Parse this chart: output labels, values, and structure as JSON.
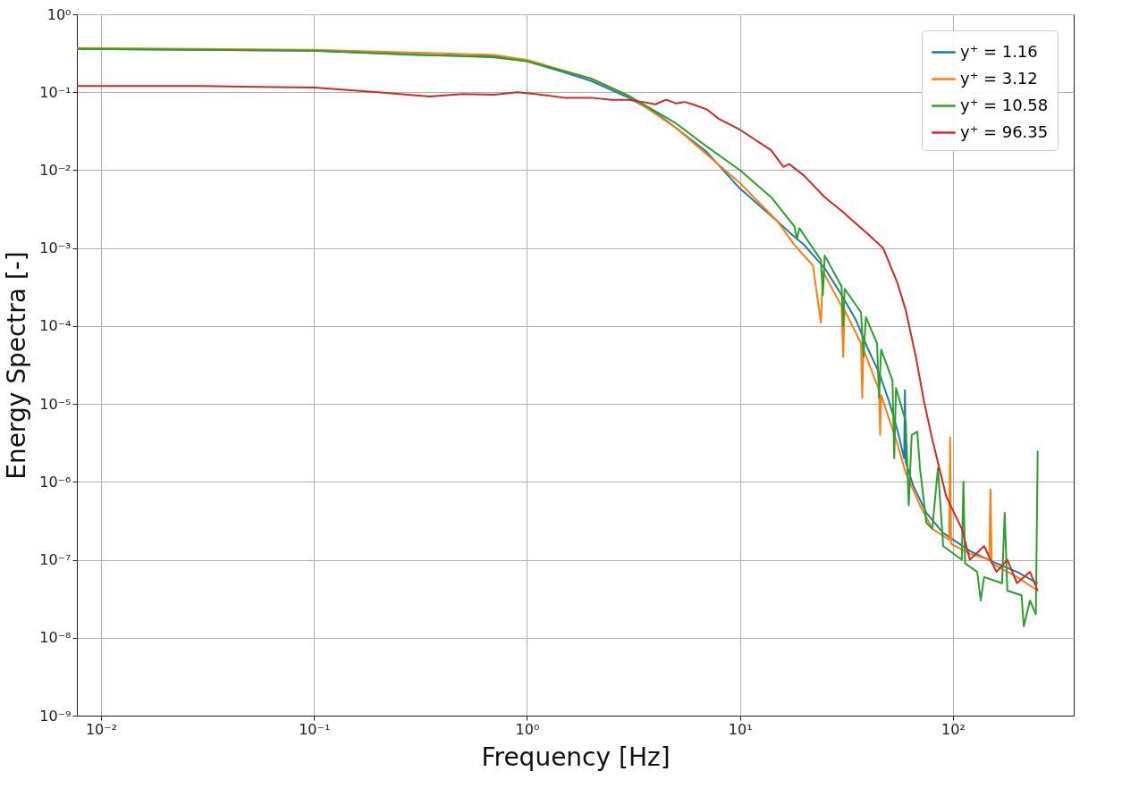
{
  "chart_data": {
    "type": "line",
    "xlabel": "Frequency [Hz]",
    "ylabel": "Energy Spectra [-]",
    "log": "xy",
    "grid": true,
    "legend": "top right",
    "xlim": [
      0.0077,
      369
    ],
    "ylim": [
      1e-09,
      1
    ],
    "xticks": [
      {
        "value": 0.01,
        "label": "10⁻²"
      },
      {
        "value": 0.1,
        "label": "10⁻¹"
      },
      {
        "value": 1,
        "label": "10⁰"
      },
      {
        "value": 10,
        "label": "10¹"
      },
      {
        "value": 100,
        "label": "10²"
      }
    ],
    "yticks": [
      {
        "value": 1e-09,
        "label": "10⁻⁹"
      },
      {
        "value": 1e-08,
        "label": "10⁻⁸"
      },
      {
        "value": 1e-07,
        "label": "10⁻⁷"
      },
      {
        "value": 1e-06,
        "label": "10⁻⁶"
      },
      {
        "value": 1e-05,
        "label": "10⁻⁵"
      },
      {
        "value": 0.0001,
        "label": "10⁻⁴"
      },
      {
        "value": 0.001,
        "label": "10⁻³"
      },
      {
        "value": 0.01,
        "label": "10⁻²"
      },
      {
        "value": 0.1,
        "label": "10⁻¹"
      },
      {
        "value": 1,
        "label": "10⁰"
      }
    ],
    "series": [
      {
        "name": "y⁺ = 1.16",
        "color": "#1f77b4",
        "x": [
          0.0077,
          0.03,
          0.1,
          0.3,
          0.7,
          1,
          1.5,
          2,
          3,
          4,
          5,
          7,
          10,
          14,
          18,
          20,
          25,
          30,
          35,
          40,
          45,
          50,
          55,
          59,
          59.5,
          60,
          65,
          75,
          90,
          120,
          160,
          200,
          250
        ],
        "values": [
          0.36,
          0.35,
          0.34,
          0.3,
          0.29,
          0.25,
          0.18,
          0.14,
          0.085,
          0.055,
          0.035,
          0.017,
          0.0058,
          0.0026,
          0.0014,
          0.0011,
          0.00055,
          0.00025,
          0.00012,
          5e-05,
          2.5e-05,
          1.1e-05,
          4.5e-06,
          2e-06,
          1.5e-05,
          1.8e-06,
          9e-07,
          4e-07,
          2.2e-07,
          1.3e-07,
          9e-08,
          7e-08,
          5e-08
        ]
      },
      {
        "name": "y⁺ = 3.12",
        "color": "#ff7f0e",
        "x": [
          0.0077,
          0.1,
          0.7,
          1,
          2,
          3,
          5,
          10,
          15,
          18,
          22,
          24,
          24.5,
          30,
          30.5,
          31,
          37,
          37.5,
          38,
          45,
          45.5,
          46,
          55,
          60,
          70,
          80,
          96,
          97,
          98,
          120,
          148,
          150,
          152,
          200,
          250
        ],
        "values": [
          0.37,
          0.35,
          0.3,
          0.26,
          0.15,
          0.09,
          0.035,
          0.0068,
          0.0022,
          0.0011,
          0.0006,
          0.00011,
          0.0005,
          0.00018,
          4e-05,
          0.00016,
          6e-05,
          1.2e-05,
          5e-05,
          1.5e-05,
          4e-06,
          1.3e-05,
          3e-06,
          1.3e-06,
          5e-07,
          2.5e-07,
          1.8e-07,
          3.7e-06,
          1.6e-07,
          1.2e-07,
          1e-07,
          8e-07,
          9e-08,
          6e-08,
          4e-08
        ]
      },
      {
        "name": "y⁺ = 10.58",
        "color": "#2ca02c",
        "x": [
          0.0077,
          0.1,
          0.7,
          1,
          2,
          3,
          5,
          7,
          10,
          14,
          18,
          18.5,
          19,
          24,
          24.5,
          25,
          30,
          30.5,
          31,
          37,
          38,
          39,
          44,
          45,
          46,
          52,
          53,
          54,
          60,
          62,
          64,
          68,
          70,
          75,
          80,
          85,
          90,
          110,
          112,
          114,
          130,
          135,
          140,
          170,
          175,
          180,
          210,
          215,
          230,
          245,
          250
        ],
        "values": [
          0.36,
          0.34,
          0.28,
          0.25,
          0.15,
          0.09,
          0.04,
          0.02,
          0.01,
          0.0045,
          0.0019,
          0.0013,
          0.0018,
          0.0007,
          0.00025,
          0.0008,
          0.00032,
          0.0001,
          0.0003,
          0.00015,
          4e-05,
          0.00013,
          6e-05,
          1.2e-05,
          5e-05,
          2e-05,
          2e-06,
          1.6e-05,
          6e-06,
          5e-07,
          4e-06,
          4.4e-06,
          1.5e-06,
          3e-07,
          2.5e-07,
          1.5e-06,
          1.5e-07,
          1e-07,
          1e-06,
          9e-08,
          7e-08,
          3e-08,
          6e-08,
          5e-08,
          4e-07,
          4e-08,
          3.5e-08,
          1.4e-08,
          3e-08,
          2e-08,
          2.5e-06
        ]
      },
      {
        "name": "y⁺ = 96.35",
        "color": "#d62728",
        "x": [
          0.0077,
          0.03,
          0.1,
          0.2,
          0.35,
          0.5,
          0.7,
          0.9,
          1.1,
          1.5,
          2,
          2.5,
          3,
          3.5,
          4,
          4.5,
          5,
          5.5,
          6,
          7,
          8,
          10,
          14,
          16,
          17,
          20,
          25,
          30,
          40,
          47,
          55,
          60,
          67,
          73,
          80,
          93,
          110,
          120,
          140,
          160,
          180,
          200,
          230,
          250
        ],
        "values": [
          0.12,
          0.12,
          0.115,
          0.1,
          0.088,
          0.095,
          0.093,
          0.1,
          0.095,
          0.085,
          0.085,
          0.08,
          0.08,
          0.075,
          0.07,
          0.08,
          0.072,
          0.075,
          0.07,
          0.06,
          0.045,
          0.033,
          0.018,
          0.011,
          0.012,
          0.0085,
          0.0045,
          0.003,
          0.0015,
          0.001,
          0.00035,
          0.00016,
          4e-05,
          1.1e-05,
          3.5e-06,
          6.5e-07,
          2.5e-07,
          1e-07,
          1.5e-07,
          7e-08,
          1e-07,
          5e-08,
          7e-08,
          4e-08
        ]
      }
    ]
  }
}
